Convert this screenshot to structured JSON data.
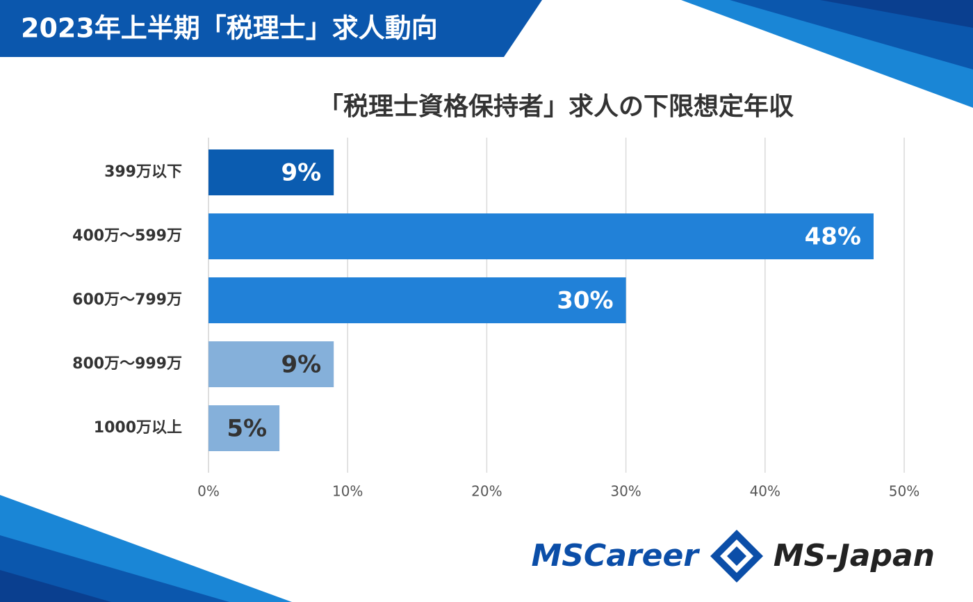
{
  "header": {
    "title": "2023年上半期「税理士」求人動向"
  },
  "chart_data": {
    "type": "hbar",
    "title": "「税理士資格保持者」求人の下限想定年収",
    "categories": [
      "399万以下",
      "400万～599万",
      "600万～799万",
      "800万～999万",
      "1000万以上"
    ],
    "values": [
      9,
      47.8,
      30,
      9,
      5.1
    ],
    "value_labels": [
      "9%",
      "48%",
      "30%",
      "9%",
      "5%"
    ],
    "colors": [
      "#0b5cb0",
      "#2181d8",
      "#2181d8",
      "#85b0da",
      "#85b0da"
    ],
    "xlim": [
      0,
      50
    ],
    "xticks": [
      {
        "value": 0,
        "label": "0%"
      },
      {
        "value": 10,
        "label": "10%"
      },
      {
        "value": 20,
        "label": "20%"
      },
      {
        "value": 30,
        "label": "30%"
      },
      {
        "value": 40,
        "label": "40%"
      },
      {
        "value": 50,
        "label": "50%"
      }
    ],
    "grid": true
  },
  "logos": [
    "MSCareer",
    "MS-Japan"
  ]
}
